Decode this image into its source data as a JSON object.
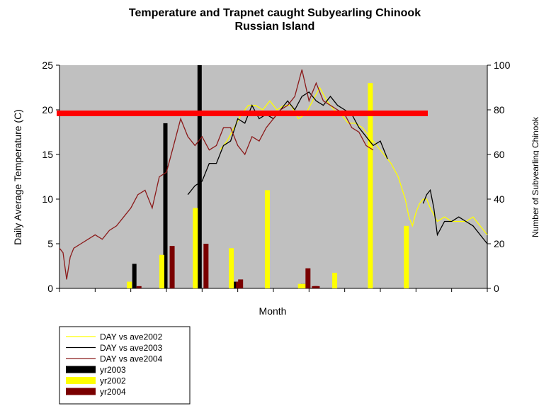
{
  "chart_data": {
    "type": "bar",
    "title": "Temperature and Trapnet caught Subyearling Chinook",
    "subtitle": "Russian Island",
    "xlabel": "Month",
    "ylabel": "Daily Average Temperature (C)",
    "y2label": "Number of Subyearling Chinook",
    "ylim": [
      0,
      25
    ],
    "y2lim": [
      0,
      100
    ],
    "yticks": [
      0,
      5,
      10,
      15,
      20,
      25
    ],
    "y2ticks": [
      0,
      20,
      40,
      60,
      80,
      100
    ],
    "xlim": [
      0,
      120
    ],
    "threshold": 19.6,
    "legend_position": "bottom-left",
    "colors": {
      "plot_bg": "#c0c0c0",
      "ave2002": "#ffff00",
      "ave2003": "#000000",
      "ave2004": "#8b1a1a",
      "yr2003": "#000000",
      "yr2002": "#ffff00",
      "yr2004": "#7a0000",
      "threshold": "#ff0000"
    },
    "series": [
      {
        "name": "DAY vs ave2002",
        "kind": "line",
        "axis": "left",
        "color": "#ffff00",
        "x": [
          45,
          47,
          49,
          51,
          53,
          55,
          57,
          59,
          61,
          63,
          65,
          67,
          69,
          71,
          73,
          75,
          77,
          79,
          81,
          83,
          85,
          87,
          89,
          91,
          93,
          95,
          97,
          98,
          99,
          100,
          101,
          102,
          103,
          104,
          106,
          108,
          110,
          112,
          114,
          116,
          118,
          120
        ],
        "y": [
          15.5,
          16.5,
          18,
          19.5,
          20.5,
          20.5,
          20,
          21,
          20,
          20.5,
          20.5,
          19,
          19.5,
          21,
          22.5,
          21,
          20,
          19.5,
          18.5,
          18.5,
          18,
          17,
          16,
          15,
          14,
          12.5,
          10,
          8,
          7,
          8.5,
          9.5,
          10,
          10,
          9,
          7.5,
          8,
          7.5,
          7.5,
          7.5,
          8,
          7,
          6
        ]
      },
      {
        "name": "DAY vs ave2003",
        "kind": "line",
        "axis": "left",
        "color": "#000000",
        "x": [
          36,
          38,
          40,
          42,
          44,
          46,
          48,
          50,
          52,
          54,
          56,
          58,
          60,
          62,
          64,
          66,
          68,
          70,
          72,
          74,
          76,
          78,
          80,
          82,
          84,
          86,
          88,
          90,
          92,
          95,
          97,
          100,
          102,
          103,
          104,
          105,
          106,
          108,
          110,
          112,
          114,
          116,
          118,
          120
        ],
        "y": [
          10.5,
          11.5,
          12,
          14,
          14,
          16,
          16.5,
          19,
          18.5,
          20.5,
          19,
          19.5,
          19,
          20,
          21,
          20,
          21.5,
          22,
          21,
          20.5,
          21.5,
          20.5,
          20,
          19.5,
          18,
          17,
          16,
          16.5,
          14.5,
          null,
          null,
          null,
          9.5,
          10.5,
          11,
          9,
          6,
          7.5,
          7.5,
          8,
          7.5,
          7,
          6,
          5
        ]
      },
      {
        "name": "DAY vs ave2004",
        "kind": "line",
        "axis": "left",
        "color": "#8b1a1a",
        "x": [
          0,
          1,
          2,
          3,
          4,
          6,
          8,
          10,
          12,
          14,
          16,
          18,
          20,
          22,
          24,
          26,
          28,
          30,
          32,
          34,
          36,
          38,
          40,
          42,
          44,
          46,
          48,
          50,
          52,
          54,
          56,
          58,
          60,
          62,
          64,
          66,
          68,
          70,
          72,
          74,
          76,
          78,
          80,
          82,
          84,
          86,
          88
        ],
        "y": [
          4.5,
          4,
          1,
          3.5,
          4.5,
          5,
          5.5,
          6,
          5.5,
          6.5,
          7,
          8,
          9,
          10.5,
          11,
          9,
          12.5,
          13,
          16,
          19,
          17,
          16,
          17,
          15.5,
          16,
          18,
          18,
          16,
          15,
          17,
          16.5,
          18,
          19,
          20,
          20.5,
          21.5,
          24.5,
          21,
          23,
          21,
          20.5,
          20,
          19.5,
          18,
          17.5,
          16,
          15.5
        ]
      },
      {
        "name": "yr2003",
        "kind": "bar",
        "axis": "right",
        "color": "#000000",
        "x": [
          21,
          29.7,
          39.3,
          49.5,
          68.3
        ],
        "values": [
          11,
          74,
          100,
          3,
          2
        ]
      },
      {
        "name": "yr2002",
        "kind": "bar",
        "axis": "right",
        "color": "#ffff00",
        "x": [
          19.6,
          28.7,
          38.1,
          48.2,
          58.3,
          67.6,
          68.8,
          77.2,
          87.2,
          97.3
        ],
        "values": [
          3,
          15,
          36,
          18,
          44,
          2,
          2,
          7,
          92,
          28
        ]
      },
      {
        "name": "yr2004",
        "kind": "bar",
        "axis": "right",
        "color": "#7a0000",
        "x": [
          22.3,
          31.6,
          41.1,
          50.8,
          50.2,
          69.7,
          71.5,
          71.9,
          72.3
        ],
        "values": [
          1,
          19,
          20,
          4,
          3,
          9,
          1,
          1,
          1
        ]
      }
    ]
  }
}
